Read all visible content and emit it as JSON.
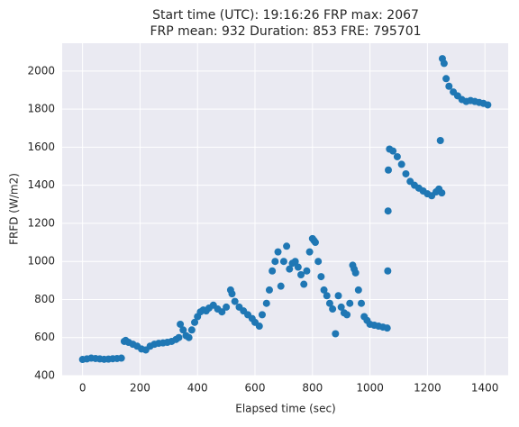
{
  "chart_data": {
    "type": "scatter",
    "title": [
      "Start time (UTC): 19:16:26 FRP max: 2067",
      "FRP mean: 932 Duration: 853 FRE: 795701"
    ],
    "xlabel": "Elapsed time (sec)",
    "ylabel": "FRFD (W/m2)",
    "xlim": [
      -71,
      1481
    ],
    "ylim": [
      400,
      2146
    ],
    "xticks": [
      0,
      200,
      400,
      600,
      800,
      1000,
      1200,
      1400
    ],
    "yticks": [
      400,
      600,
      800,
      1000,
      1200,
      1400,
      1600,
      1800,
      2000
    ],
    "grid": true,
    "color": "#1f77b4",
    "x": [
      0,
      15,
      30,
      45,
      60,
      75,
      90,
      105,
      120,
      135,
      145,
      150,
      160,
      175,
      190,
      205,
      220,
      235,
      250,
      265,
      280,
      295,
      310,
      325,
      335,
      340,
      350,
      360,
      370,
      380,
      390,
      400,
      410,
      420,
      430,
      440,
      455,
      470,
      485,
      500,
      515,
      520,
      530,
      545,
      560,
      575,
      590,
      600,
      615,
      625,
      640,
      650,
      660,
      670,
      680,
      690,
      700,
      710,
      720,
      730,
      740,
      750,
      760,
      770,
      780,
      790,
      800,
      805,
      810,
      820,
      830,
      840,
      850,
      860,
      870,
      880,
      890,
      900,
      910,
      920,
      930,
      940,
      945,
      950,
      960,
      970,
      980,
      990,
      1000,
      1015,
      1030,
      1045,
      1060,
      1062,
      1063,
      1064,
      1068,
      1080,
      1095,
      1110,
      1125,
      1140,
      1155,
      1170,
      1185,
      1200,
      1215,
      1230,
      1240,
      1245,
      1250,
      1252,
      1258,
      1265,
      1275,
      1290,
      1305,
      1320,
      1335,
      1350,
      1365,
      1380,
      1395,
      1410
    ],
    "values": [
      485,
      488,
      492,
      490,
      488,
      486,
      487,
      489,
      490,
      492,
      580,
      585,
      575,
      565,
      555,
      540,
      535,
      555,
      565,
      570,
      572,
      575,
      580,
      590,
      600,
      670,
      640,
      610,
      600,
      640,
      680,
      710,
      735,
      745,
      740,
      755,
      770,
      750,
      735,
      760,
      850,
      830,
      790,
      760,
      740,
      720,
      700,
      680,
      660,
      720,
      780,
      850,
      950,
      1000,
      1050,
      870,
      1000,
      1080,
      960,
      990,
      1000,
      970,
      930,
      880,
      950,
      1050,
      1120,
      1110,
      1100,
      1000,
      920,
      850,
      820,
      780,
      750,
      620,
      820,
      760,
      730,
      720,
      780,
      980,
      960,
      940,
      850,
      780,
      710,
      690,
      670,
      665,
      660,
      655,
      650,
      950,
      1265,
      1480,
      1590,
      1580,
      1550,
      1510,
      1460,
      1420,
      1400,
      1385,
      1370,
      1355,
      1345,
      1365,
      1380,
      1635,
      1360,
      2065,
      2040,
      1960,
      1920,
      1890,
      1870,
      1850,
      1840,
      1845,
      1840,
      1835,
      1830,
      1822
    ]
  }
}
